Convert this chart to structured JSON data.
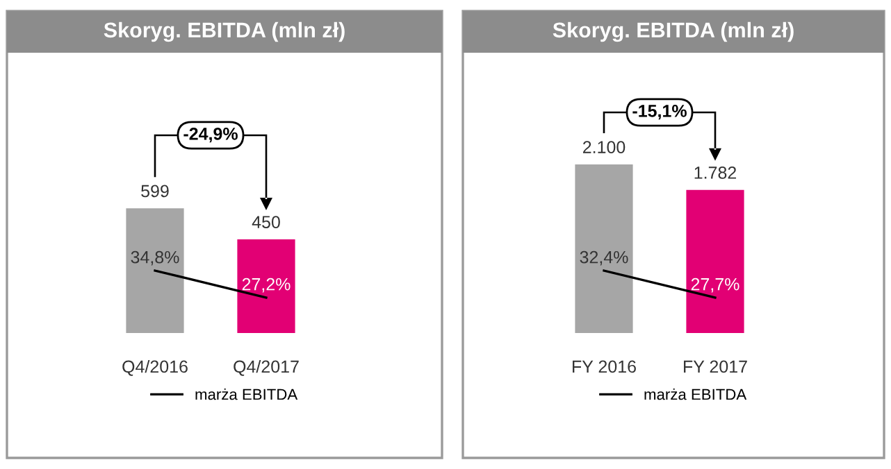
{
  "chart_data": [
    {
      "type": "bar",
      "title": "Skoryg. EBITDA (mln zł)",
      "categories": [
        "Q4/2016",
        "Q4/2017"
      ],
      "ylim": [
        0,
        1000
      ],
      "tick_labels": "x",
      "legend": "bottom",
      "annotations": [
        "-24,9%"
      ],
      "series": [
        {
          "colors": [
            "#a6a6a6",
            "#e20074"
          ],
          "values": [
            599,
            450
          ],
          "value_labels": [
            "599",
            "450"
          ]
        },
        {
          "type": "line",
          "name": "marża EBITDA",
          "color": "#000000",
          "axis": "y2",
          "values": [
            34.8,
            27.2
          ],
          "value_labels": [
            "34,8%",
            "27,2%"
          ]
        }
      ]
    },
    {
      "type": "bar",
      "title": "Skoryg. EBITDA (mln zł)",
      "categories": [
        "FY 2016",
        "FY 2017"
      ],
      "tick_labels": "x",
      "legend": "bottom",
      "annotations": [
        "-15,1%"
      ],
      "series": [
        {
          "colors": [
            "#a6a6a6",
            "#e20074"
          ],
          "values": [
            2100,
            1782
          ],
          "value_labels": [
            "2.100",
            "1.782"
          ]
        },
        {
          "type": "line",
          "name": "marża EBITDA",
          "color": "#000000",
          "axis": "y2",
          "values": [
            32.4,
            27.7
          ],
          "value_labels": [
            "32,4%",
            "27,7%"
          ]
        }
      ]
    }
  ]
}
